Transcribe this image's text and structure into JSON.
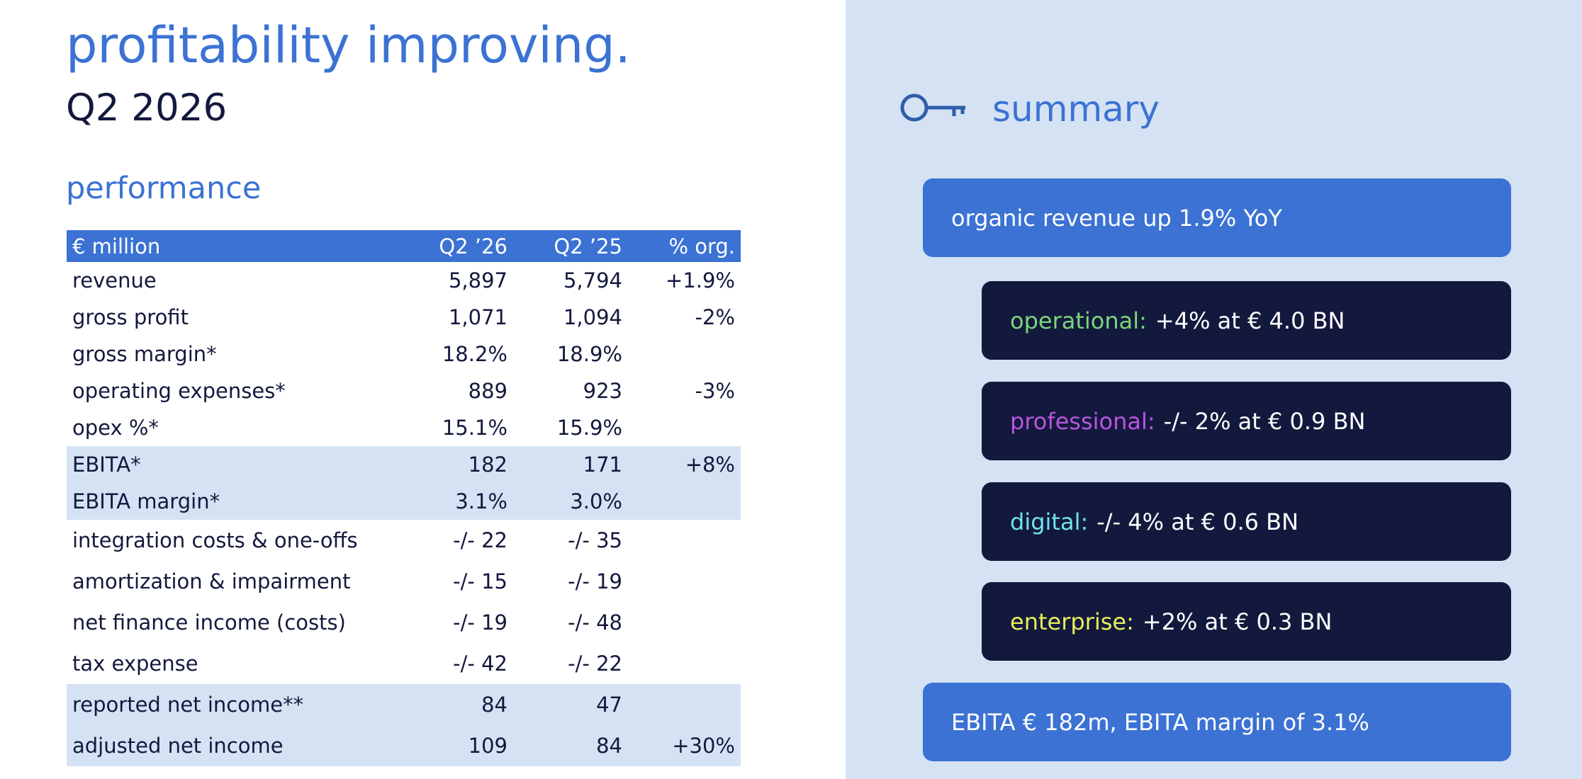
{
  "headline": "profitability improving.",
  "period": "Q2 2026",
  "performance": {
    "title": "performance",
    "columns": [
      "€ million",
      "Q2 ’26",
      "Q2 ’25",
      "% org."
    ],
    "rows": [
      {
        "label": "revenue",
        "q26": "5,897",
        "q25": "5,794",
        "org": "+1.9%"
      },
      {
        "label": "gross profit",
        "q26": "1,071",
        "q25": "1,094",
        "org": "-2%"
      },
      {
        "label": "gross margin*",
        "q26": "18.2%",
        "q25": "18.9%",
        "org": ""
      },
      {
        "label": "operating expenses*",
        "q26": "889",
        "q25": "923",
        "org": "-3%"
      },
      {
        "label": "opex %*",
        "q26": "15.1%",
        "q25": "15.9%",
        "org": ""
      },
      {
        "label": "EBITA*",
        "q26": "182",
        "q25": "171",
        "org": "+8%"
      },
      {
        "label": "EBITA margin*",
        "q26": "3.1%",
        "q25": "3.0%",
        "org": ""
      },
      {
        "label": "integration costs & one-offs",
        "q26": "-/- 22",
        "q25": "-/- 35",
        "org": ""
      },
      {
        "label": "amortization & impairment",
        "q26": "-/- 15",
        "q25": "-/- 19",
        "org": ""
      },
      {
        "label": "net finance income (costs)",
        "q26": "-/- 19",
        "q25": "-/- 48",
        "org": ""
      },
      {
        "label": "tax expense",
        "q26": "-/- 42",
        "q25": "-/- 22",
        "org": ""
      },
      {
        "label": "reported net income**",
        "q26": "84",
        "q25": "47",
        "org": ""
      },
      {
        "label": "adjusted net income",
        "q26": "109",
        "q25": "84",
        "org": "+30%"
      }
    ]
  },
  "summary": {
    "title": "summary",
    "icon": "key-icon",
    "top": "organic revenue up 1.9% YoY",
    "segments": [
      {
        "label": "operational:",
        "text": "+4% at € 4.0 BN",
        "color": "#7bd67a"
      },
      {
        "label": "professional:",
        "text": "-/- 2% at € 0.9 BN",
        "color": "#b855e0"
      },
      {
        "label": "digital:",
        "text": "-/- 4% at € 0.6 BN",
        "color": "#6fe3ee"
      },
      {
        "label": "enterprise:",
        "text": "+2% at € 0.3 BN",
        "color": "#e8ef5a"
      }
    ],
    "bottom": "EBITA € 182m, EBITA margin of 3.1%"
  },
  "colors": {
    "accent": "#3b72d3",
    "dark": "#13193d",
    "panel": "#d4e2f4"
  }
}
